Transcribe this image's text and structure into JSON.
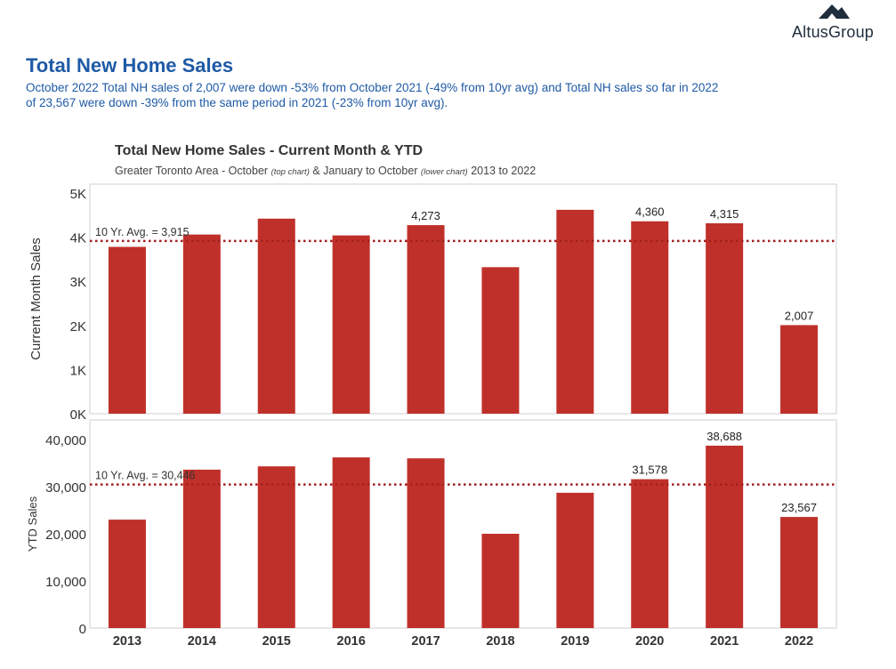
{
  "logo": {
    "text": "AltusGroup",
    "icon": "mountain-logo-icon"
  },
  "header": {
    "title": "Total New Home Sales",
    "subtitle": "October 2022 Total NH sales of 2,007 were down -53% from October 2021 (-49% from 10yr avg) and Total NH sales so far in 2022 of 23,567 were down -39% from the same period in 2021 (-23% from 10yr avg)."
  },
  "chart_header": {
    "title": "Total New Home Sales - Current Month & YTD",
    "sub_pre": "Greater Toronto Area - October ",
    "sub_top": "(top chart)",
    "sub_mid": " & January to October ",
    "sub_lower": "(lower chart)",
    "sub_post": " 2013 to 2022"
  },
  "chart_data": [
    {
      "type": "bar",
      "title": "Total New Home Sales - Current Month & YTD",
      "ylabel": "Current Month Sales",
      "categories": [
        "2013",
        "2014",
        "2015",
        "2016",
        "2017",
        "2018",
        "2019",
        "2020",
        "2021",
        "2022"
      ],
      "values": [
        3780,
        4060,
        4420,
        4040,
        4273,
        3320,
        4620,
        4360,
        4315,
        2007
      ],
      "data_labels": [
        "",
        "",
        "",
        "",
        "4,273",
        "",
        "",
        "4,360",
        "4,315",
        "2,007"
      ],
      "ylim": [
        0,
        5000
      ],
      "yticks": [
        0,
        1000,
        2000,
        3000,
        4000,
        5000
      ],
      "ytick_labels": [
        "0K",
        "1K",
        "2K",
        "3K",
        "4K",
        "5K"
      ],
      "avg_value": 3915,
      "avg_label": "10 Yr. Avg. = 3,915",
      "bar_color": "#c0302a",
      "avg_color": "#a31f1f"
    },
    {
      "type": "bar",
      "ylabel": "YTD Sales",
      "categories": [
        "2013",
        "2014",
        "2015",
        "2016",
        "2017",
        "2018",
        "2019",
        "2020",
        "2021",
        "2022"
      ],
      "values": [
        23000,
        33600,
        34300,
        36200,
        36000,
        20000,
        28700,
        31578,
        38688,
        23567
      ],
      "data_labels": [
        "",
        "",
        "",
        "",
        "",
        "",
        "",
        "31,578",
        "38,688",
        "23,567"
      ],
      "ylim": [
        0,
        42500
      ],
      "yticks": [
        0,
        10000,
        20000,
        30000,
        40000
      ],
      "ytick_labels": [
        "0",
        "10,000",
        "20,000",
        "30,000",
        "40,000"
      ],
      "avg_value": 30446,
      "avg_label": "10 Yr. Avg. = 30,446",
      "bar_color": "#c0302a",
      "avg_color": "#a31f1f"
    }
  ]
}
